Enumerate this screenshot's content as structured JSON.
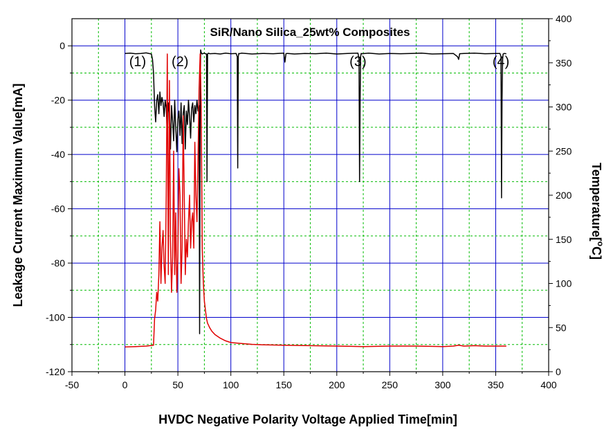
{
  "chart_data": {
    "type": "line",
    "title": "SiR/Nano Silica_25wt% Composites",
    "xlabel": "HVDC Negative Polarity Voltage Applied Time[min]",
    "ylabel": "Leakage Current Maximum Value[mA]",
    "y2label_main": "Temperature[",
    "y2label_sup": "o",
    "y2label_end": "C]",
    "xlim": [
      -50,
      400
    ],
    "ylim": [
      -120,
      10
    ],
    "y2lim": [
      0,
      400
    ],
    "xticks": [
      -50,
      0,
      50,
      100,
      150,
      200,
      250,
      300,
      350,
      400
    ],
    "yticks": [
      0,
      -20,
      -40,
      -60,
      -80,
      -100,
      -120
    ],
    "y2ticks": [
      0,
      50,
      100,
      150,
      200,
      250,
      300,
      350,
      400
    ],
    "grid": true,
    "colors": {
      "leakage": "#000000",
      "temperature": "#e00000",
      "grid_major": "#0000cc",
      "grid_minor": "#00bb00"
    },
    "annotations": [
      {
        "text": "(1)",
        "x": 12,
        "y": -7.5
      },
      {
        "text": "(2)",
        "x": 52,
        "y": -7.5
      },
      {
        "text": "(3)",
        "x": 220,
        "y": -7.5
      },
      {
        "text": "(4)",
        "x": 355,
        "y": -7.5
      }
    ],
    "series": [
      {
        "key": "leakage",
        "axis": "left",
        "x": [
          0,
          5,
          10,
          15,
          20,
          25,
          26,
          27,
          28,
          29,
          30,
          31,
          32,
          33,
          34,
          35,
          36,
          37,
          38,
          39,
          40,
          41,
          42,
          43,
          44,
          45,
          46,
          47,
          48,
          49,
          50,
          51,
          52,
          53,
          54,
          55,
          56,
          57,
          58,
          59,
          60,
          61,
          62,
          63,
          64,
          65,
          66,
          67,
          68,
          69,
          70,
          70.5,
          71,
          71.5,
          72,
          73,
          74,
          75,
          76,
          77,
          77.5,
          78,
          78.5,
          79,
          80,
          85,
          90,
          95,
          100,
          105,
          106,
          106.5,
          107,
          107.5,
          108,
          110,
          120,
          130,
          140,
          150,
          151,
          152,
          153,
          154,
          160,
          170,
          180,
          190,
          200,
          210,
          220,
          221,
          221.5,
          222,
          222.5,
          223,
          224,
          230,
          240,
          250,
          260,
          270,
          280,
          290,
          300,
          310,
          314,
          315,
          316,
          320,
          330,
          340,
          350,
          354,
          355,
          355.5,
          356,
          356.5,
          357,
          358,
          360
        ],
        "y": [
          -2.8,
          -2.7,
          -2.9,
          -2.8,
          -2.6,
          -3,
          -5,
          -10,
          -22,
          -28,
          -20,
          -18,
          -25,
          -17,
          -22,
          -19,
          -21,
          -26,
          -20,
          -23,
          -33,
          -21,
          -25,
          -38,
          -22,
          -28,
          -35,
          -20,
          -30,
          -39,
          -27,
          -24,
          -33,
          -21,
          -36,
          -25,
          -22,
          -38,
          -24,
          -29,
          -20,
          -26,
          -34,
          -23,
          -21,
          -28,
          -22,
          -25,
          -20,
          -24,
          -22,
          -106,
          -22,
          -1.5,
          -2.5,
          -3,
          -2.8,
          -2.7,
          -2.9,
          -3,
          -50,
          -3,
          -2.8,
          -2.7,
          -2.9,
          -2.8,
          -3,
          -2.7,
          -2.9,
          -2.8,
          -4,
          -45,
          -4,
          -2.8,
          -2.9,
          -2.7,
          -3,
          -2.8,
          -2.9,
          -2.7,
          -6,
          -2.9,
          -2.8,
          -2.8,
          -3,
          -2.8,
          -2.9,
          -2.7,
          -3,
          -2.8,
          -2.7,
          -5,
          -50,
          -20,
          -4,
          -2.8,
          -2.9,
          -2.7,
          -3,
          -2.8,
          -2.9,
          -2.8,
          -2.7,
          -3,
          -2.9,
          -2.8,
          -4,
          -5,
          -2.9,
          -2.8,
          -2.7,
          -2.9,
          -2.8,
          -2.8,
          -4,
          -56,
          -20,
          -5,
          -3,
          -2.8,
          -2.9
        ]
      },
      {
        "key": "temperature",
        "axis": "right",
        "x": [
          0,
          10,
          20,
          27,
          28,
          29,
          30,
          31,
          32,
          33,
          34,
          35,
          36,
          37,
          38,
          39,
          40,
          41,
          42,
          43,
          44,
          45,
          46,
          47,
          48,
          49,
          50,
          51,
          52,
          53,
          54,
          55,
          56,
          57,
          58,
          59,
          60,
          61,
          62,
          63,
          64,
          65,
          66,
          67,
          68,
          69,
          70,
          71,
          72,
          73,
          74,
          75,
          76,
          77,
          78,
          80,
          82,
          85,
          90,
          95,
          100,
          110,
          120,
          130,
          150,
          175,
          200,
          225,
          250,
          275,
          300,
          310,
          315,
          320,
          330,
          340,
          350,
          360
        ],
        "y": [
          28,
          28.5,
          29,
          30,
          60,
          70,
          90,
          80,
          110,
          170,
          100,
          140,
          160,
          120,
          100,
          200,
          360,
          110,
          330,
          150,
          90,
          130,
          250,
          110,
          180,
          90,
          130,
          230,
          200,
          100,
          140,
          290,
          200,
          110,
          150,
          130,
          170,
          200,
          140,
          170,
          180,
          140,
          260,
          200,
          170,
          240,
          320,
          360,
          300,
          140,
          100,
          80,
          70,
          60,
          55,
          50,
          46,
          42,
          38,
          35,
          33,
          32,
          31,
          30.5,
          30,
          29.5,
          29,
          28.5,
          29,
          29,
          28.5,
          29,
          30,
          29,
          29.5,
          29,
          29,
          29
        ]
      }
    ]
  }
}
